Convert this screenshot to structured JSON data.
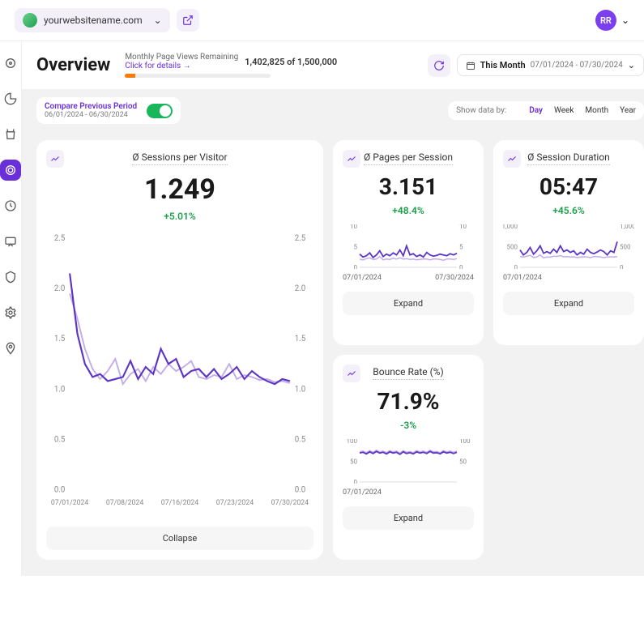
{
  "header": {
    "site_name": "yourwebsitename.com",
    "avatar_initials": "RR"
  },
  "page": {
    "title": "Overview",
    "page_views": {
      "label": "Monthly Page Views Remaining",
      "link_text": "Click for details →",
      "usage_text": "1,402,825 of 1,500,000",
      "bar_pct": 7,
      "bar_fill_color": "#ff7a00",
      "bar_bg_color": "#ececec"
    },
    "date_range": {
      "label": "This Month",
      "range_text": "07/01/2024 - 07/30/2024"
    }
  },
  "compare": {
    "title": "Compare Previous Period",
    "sub": "06/01/2024 - 06/30/2024",
    "enabled": true
  },
  "granularity": {
    "label": "Show data by:",
    "options": [
      "Day",
      "Week",
      "Month",
      "Year"
    ],
    "active": "Day"
  },
  "colors": {
    "accent": "#6a2fd8",
    "primary_line": "#5c35c4",
    "compare_line": "#c3aee9",
    "positive": "#1a9e4a",
    "card_bg": "#ffffff",
    "page_bg": "#f2f2f2",
    "axis_text": "#888888"
  },
  "metrics": {
    "sessions_per_visitor": {
      "title": "Ø Sessions per Visitor",
      "value": "1.249",
      "delta": "+5.01%",
      "collapse_label": "Collapse",
      "chart": {
        "y_ticks": [
          0,
          0.5,
          1.0,
          1.5,
          2.0,
          2.5
        ],
        "x_ticks": [
          "07/01/2024",
          "07/08/2024",
          "07/16/2024",
          "07/23/2024",
          "07/30/2024"
        ],
        "ylim": [
          0,
          2.5
        ],
        "primary": [
          2.15,
          1.55,
          1.25,
          1.12,
          1.15,
          1.08,
          1.1,
          1.12,
          1.28,
          1.1,
          1.22,
          1.15,
          1.4,
          1.25,
          1.3,
          1.12,
          1.18,
          1.2,
          1.12,
          1.2,
          1.1,
          1.15,
          1.22,
          1.1,
          1.18,
          1.12,
          1.08,
          1.05,
          1.1,
          1.08
        ],
        "compare": [
          1.95,
          1.7,
          1.4,
          1.2,
          1.1,
          1.18,
          1.3,
          1.05,
          1.15,
          1.2,
          1.08,
          1.22,
          1.15,
          1.25,
          1.18,
          1.22,
          1.28,
          1.12,
          1.1,
          1.14,
          1.12,
          1.25,
          1.1,
          1.14,
          1.12,
          1.09,
          1.1,
          1.07,
          1.08,
          1.06
        ]
      }
    },
    "pages_per_session": {
      "title": "Ø Pages per Session",
      "value": "3.151",
      "delta": "+48.4%",
      "expand_label": "Expand",
      "chart": {
        "ylim": [
          0,
          10
        ],
        "y_ticks_left": [
          10,
          5,
          0
        ],
        "y_ticks_right": [
          10,
          5,
          0
        ],
        "x_left": "07/01/2024",
        "x_right": "07/30/2024",
        "primary": [
          3.2,
          2.5,
          2.8,
          3.5,
          2.4,
          3.0,
          4.0,
          2.6,
          3.2,
          2.8,
          3.5,
          3.0,
          4.2,
          2.8,
          5.2,
          3.0,
          3.3,
          2.6,
          3.0,
          2.5,
          3.6,
          3.0,
          2.7,
          2.9,
          3.2,
          3.0,
          2.8,
          3.3,
          3.0,
          3.4
        ],
        "compare": [
          2.0,
          1.8,
          2.1,
          2.3,
          1.9,
          2.0,
          2.6,
          1.8,
          2.0,
          1.9,
          2.2,
          2.0,
          2.3,
          2.0,
          2.1,
          1.9,
          2.0,
          1.8,
          1.9,
          2.0,
          2.0,
          1.8,
          2.0,
          2.0,
          1.9,
          1.7,
          2.0,
          2.0,
          1.9,
          2.1
        ]
      }
    },
    "session_duration": {
      "title": "Ø Session Duration",
      "value": "05:47",
      "delta": "+45.6%",
      "expand_label": "Expand",
      "chart": {
        "ylim": [
          0,
          1000
        ],
        "y_ticks_left": [
          1000,
          500,
          0
        ],
        "y_ticks_right": [
          1000,
          500,
          0
        ],
        "x_left": "07/01/2024",
        "primary": [
          420,
          300,
          360,
          480,
          320,
          400,
          520,
          340,
          380,
          340,
          440,
          360,
          520,
          380,
          420,
          360,
          400,
          300,
          360,
          320,
          440,
          360,
          330,
          370,
          420,
          380,
          300,
          400,
          360,
          620
        ],
        "compare": [
          260,
          250,
          270,
          290,
          240,
          250,
          300,
          230,
          250,
          245,
          270,
          265,
          280,
          255,
          260,
          250,
          255,
          235,
          250,
          255,
          250,
          235,
          260,
          258,
          250,
          235,
          250,
          255,
          250,
          260
        ]
      }
    },
    "bounce_rate": {
      "title": "Bounce Rate (%)",
      "value": "71.9%",
      "delta": "-3%",
      "expand_label": "Expand",
      "chart": {
        "ylim": [
          0,
          100
        ],
        "y_ticks_left": [
          100,
          50,
          0
        ],
        "y_ticks_right": [
          100,
          50
        ],
        "x_left": "07/01/2024",
        "primary": [
          70,
          72,
          68,
          73,
          69,
          74,
          70,
          72,
          68,
          73,
          70,
          72,
          67,
          73,
          69,
          71,
          68,
          73,
          70,
          72,
          69,
          74,
          70,
          71,
          68,
          73,
          70,
          72,
          69,
          72
        ],
        "compare": [
          73,
          75,
          71,
          76,
          72,
          77,
          73,
          75,
          71,
          76,
          73,
          75,
          70,
          76,
          72,
          74,
          71,
          76,
          73,
          75,
          72,
          77,
          73,
          74,
          71,
          76,
          73,
          75,
          72,
          75
        ]
      }
    }
  }
}
